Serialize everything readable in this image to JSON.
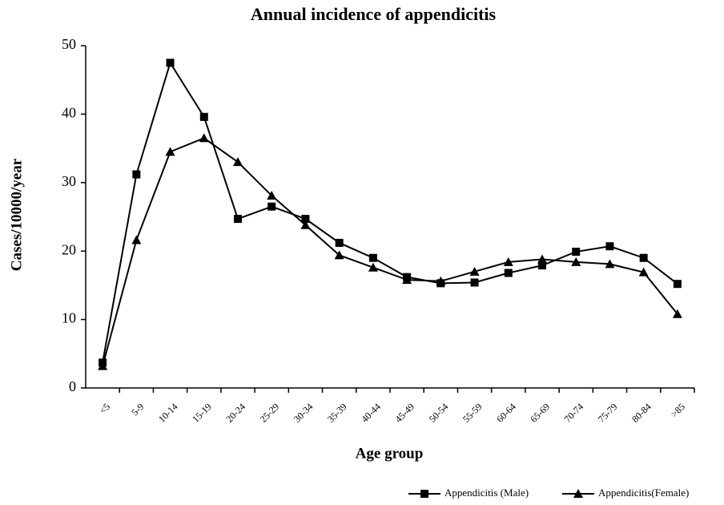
{
  "chart_data": {
    "type": "line",
    "title": "Annual incidence of appendicitis",
    "x_label": "Age group",
    "y_label": "Cases/10000/year",
    "categories": [
      "<5",
      "5-9",
      "10-14",
      "15-19",
      "20-24",
      "25-29",
      "30-34",
      "35-39",
      "40-44",
      "45-49",
      "50-54",
      "55-59",
      "60-64",
      "65-69",
      "70-74",
      "75-79",
      "80-84",
      ">85"
    ],
    "series": [
      {
        "name": "Appendicitis (Male)",
        "color": "#000000",
        "marker": "square",
        "values": [
          3.7,
          31.2,
          47.5,
          39.6,
          24.7,
          26.5,
          24.7,
          21.2,
          19.0,
          16.2,
          15.3,
          15.4,
          16.8,
          17.9,
          19.9,
          20.7,
          19.0,
          15.2
        ]
      },
      {
        "name": "Appendicitis(Female)",
        "color": "#000000",
        "marker": "triangle",
        "values": [
          3.2,
          21.6,
          34.5,
          36.5,
          33.0,
          28.1,
          23.8,
          19.4,
          17.6,
          15.8,
          15.6,
          17.0,
          18.4,
          18.8,
          18.4,
          18.1,
          16.9,
          10.8
        ]
      }
    ],
    "ylim": [
      0,
      50
    ],
    "yticks": [
      0,
      10,
      20,
      30,
      40,
      50
    ],
    "grid": false,
    "legend": "bottom-right"
  }
}
